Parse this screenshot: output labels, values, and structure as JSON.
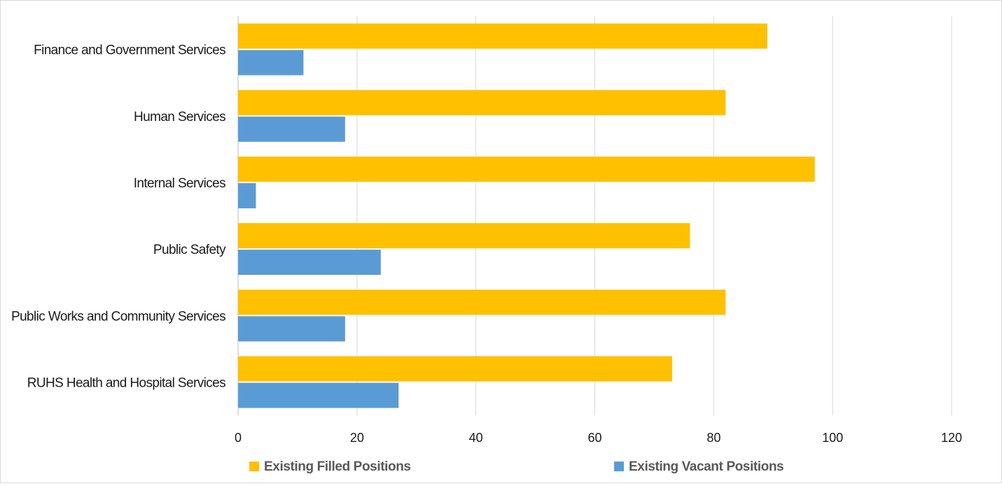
{
  "chart_data": {
    "type": "bar",
    "orientation": "horizontal",
    "categories": [
      "Finance and Government Services",
      "Human Services",
      "Internal Services",
      "Public Safety",
      "Public Works and Community Services",
      "RUHS Health and Hospital Services"
    ],
    "series": [
      {
        "name": "Existing Filled Positions",
        "color": "#FFC000",
        "values": [
          89,
          82,
          97,
          76,
          82,
          73
        ]
      },
      {
        "name": "Existing Vacant Positions",
        "color": "#5B9BD5",
        "values": [
          11,
          18,
          3,
          24,
          18,
          27
        ]
      }
    ],
    "xlim": [
      0,
      120
    ],
    "xticks": [
      0,
      20,
      40,
      60,
      80,
      100,
      120
    ],
    "grid": "vertical",
    "legend_position": "bottom",
    "title": "",
    "xlabel": "",
    "ylabel": ""
  }
}
